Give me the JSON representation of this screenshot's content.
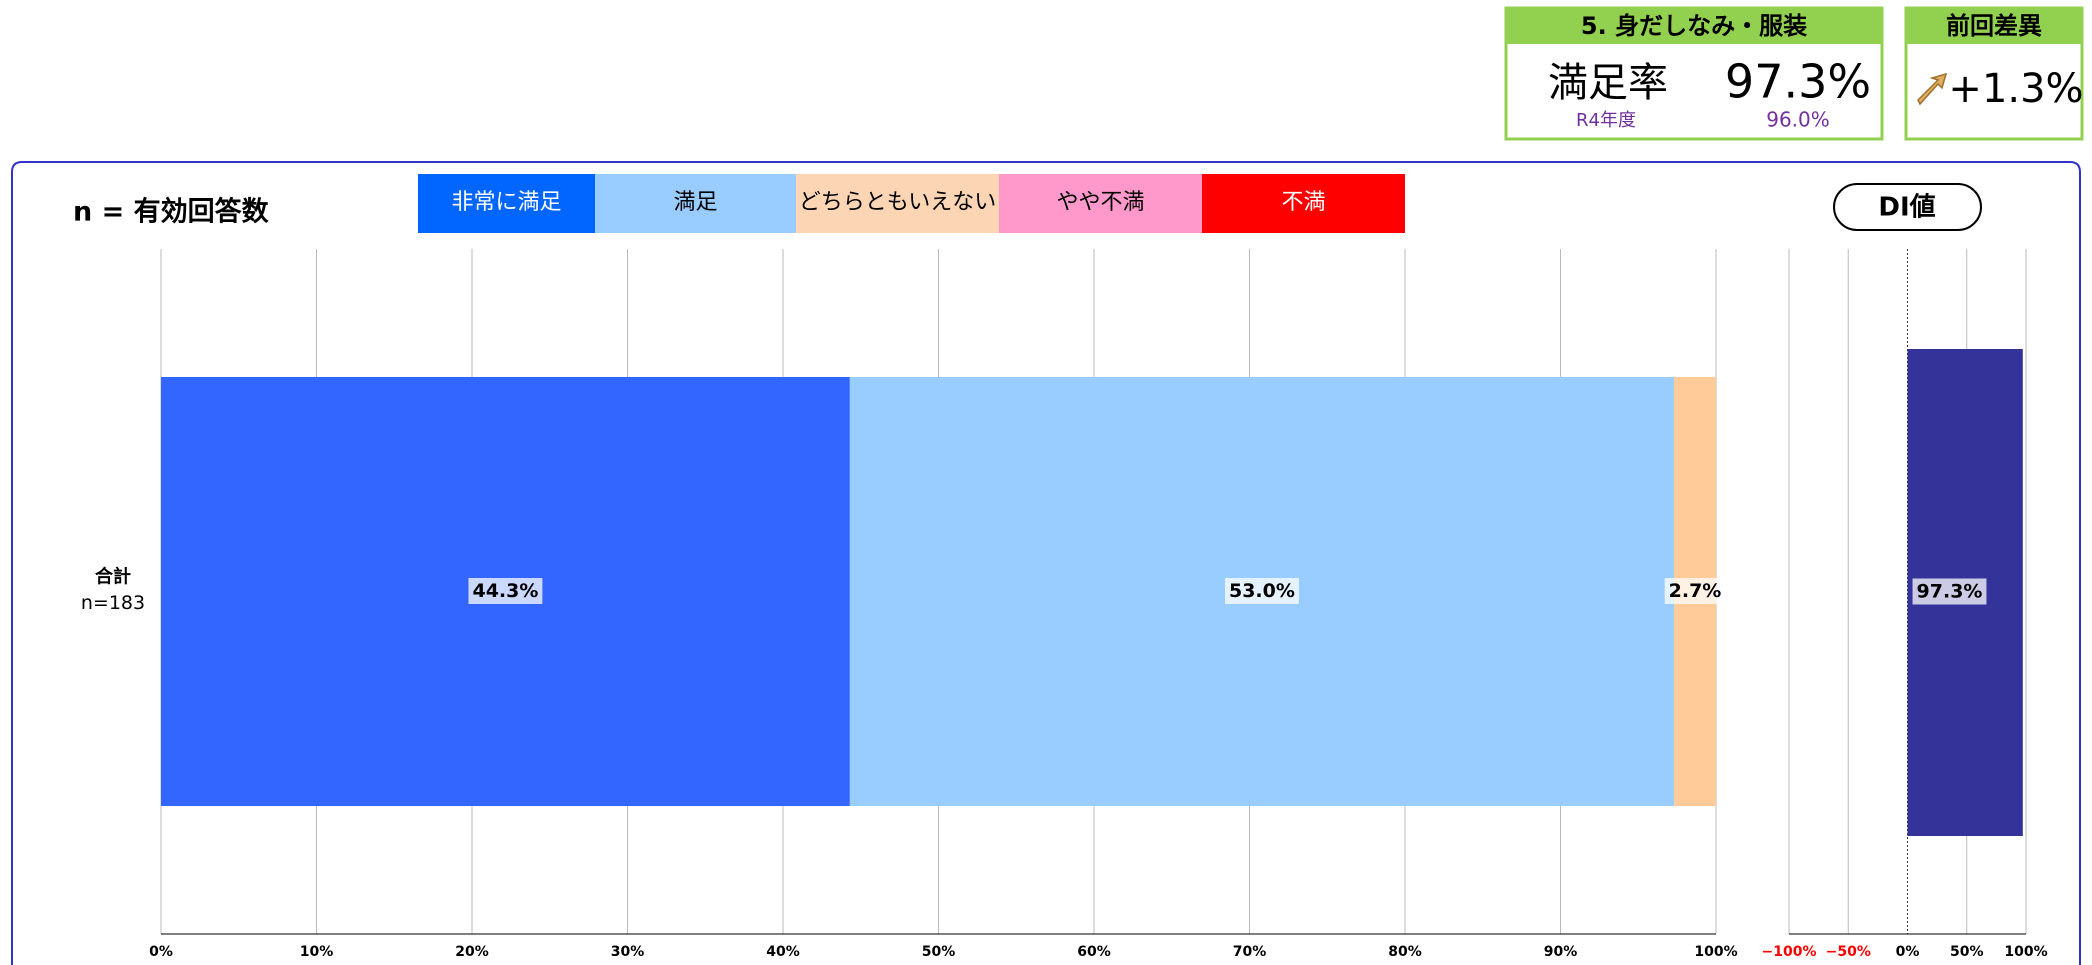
{
  "summary": {
    "title": "5. 身だしなみ・服装",
    "rate_label": "満足率",
    "rate": "97.3%",
    "prev_label": "R4年度",
    "prev_rate": "96.0%",
    "diff_title": "前回差異",
    "diff": "+1.3%"
  },
  "chart_data": [
    {
      "type": "stacked_bar",
      "annotation": "n = 有効回答数",
      "categories": [
        "合計"
      ],
      "category_notes": [
        "n=183"
      ],
      "series": [
        {
          "name": "非常に満足",
          "color": "#3366ff",
          "values": [
            44.3
          ],
          "value_labels": [
            "44.3%"
          ]
        },
        {
          "name": "満足",
          "color": "#99ccff",
          "values": [
            53.0
          ],
          "value_labels": [
            "53.0%"
          ]
        },
        {
          "name": "どちらともいえない",
          "color": "#ffcc99",
          "values": [
            2.7
          ],
          "value_labels": [
            "2.7%"
          ]
        },
        {
          "name": "やや不満",
          "color": "#ff99cc",
          "values": [
            0
          ]
        },
        {
          "name": "不満",
          "color": "#ff0000",
          "values": [
            0
          ]
        }
      ],
      "legend_colors": [
        "#0066ff",
        "#99ccff",
        "#fcd5b5",
        "#ff99cc",
        "#ff0000"
      ],
      "xlim": [
        0,
        100
      ],
      "xticks": [
        {
          "value": 0,
          "label": "0%"
        },
        {
          "value": 10,
          "label": "10%"
        },
        {
          "value": 20,
          "label": "20%"
        },
        {
          "value": 30,
          "label": "30%"
        },
        {
          "value": 40,
          "label": "40%"
        },
        {
          "value": 50,
          "label": "50%"
        },
        {
          "value": 60,
          "label": "60%"
        },
        {
          "value": 70,
          "label": "70%"
        },
        {
          "value": 80,
          "label": "80%"
        },
        {
          "value": 90,
          "label": "90%"
        },
        {
          "value": 100,
          "label": "100%"
        }
      ],
      "grid": true
    },
    {
      "type": "bar",
      "title": "DI値",
      "values": [
        97.3
      ],
      "value_labels": [
        "97.3%"
      ],
      "color": "#333399",
      "xlim": [
        -100,
        100
      ],
      "xticks": [
        {
          "value": -100,
          "label": "−100%"
        },
        {
          "value": -50,
          "label": "−50%"
        },
        {
          "value": 0,
          "label": "0%"
        },
        {
          "value": 50,
          "label": "50%"
        },
        {
          "value": 100,
          "label": "100%"
        }
      ],
      "grid": true
    }
  ]
}
